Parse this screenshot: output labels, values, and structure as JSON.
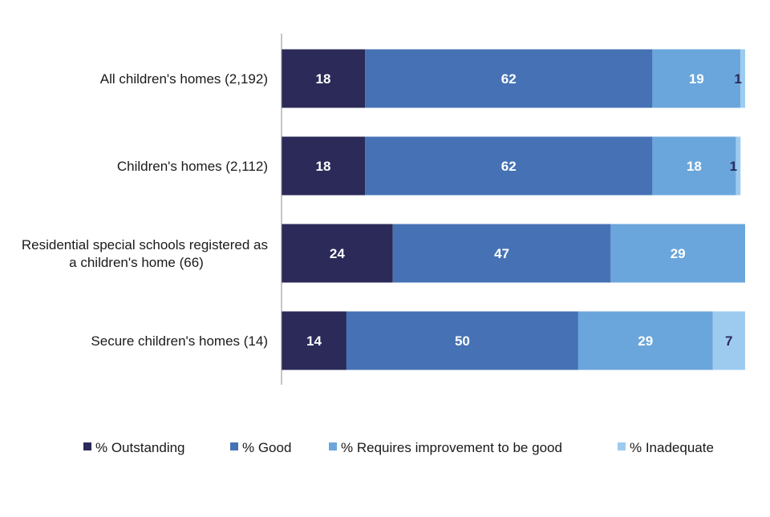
{
  "chart_data": {
    "type": "bar",
    "orientation": "horizontal",
    "stacked": true,
    "title": "",
    "xlabel": "",
    "ylabel": "",
    "xlim": [
      0,
      100
    ],
    "grid": false,
    "legend_position": "bottom",
    "categories": [
      "All children's homes (2,192)",
      "Children's homes (2,112)",
      [
        "Residential special schools registered as",
        "a children's home (66)"
      ],
      "Secure children's homes (14)"
    ],
    "series": [
      {
        "name": "% Outstanding",
        "color": "#2b2a59",
        "label_color": "#ffffff",
        "values": [
          18,
          18,
          24,
          14
        ]
      },
      {
        "name": "% Good",
        "color": "#4672b5",
        "label_color": "#ffffff",
        "values": [
          62,
          62,
          47,
          50
        ]
      },
      {
        "name": "% Requires improvement to be good",
        "color": "#6aa6db",
        "label_color": "#ffffff",
        "values": [
          19,
          18,
          29,
          29
        ]
      },
      {
        "name": "% Inadequate",
        "color": "#9dcbf0",
        "label_color": "#2b2a59",
        "values": [
          1,
          1,
          0,
          7
        ]
      }
    ]
  }
}
